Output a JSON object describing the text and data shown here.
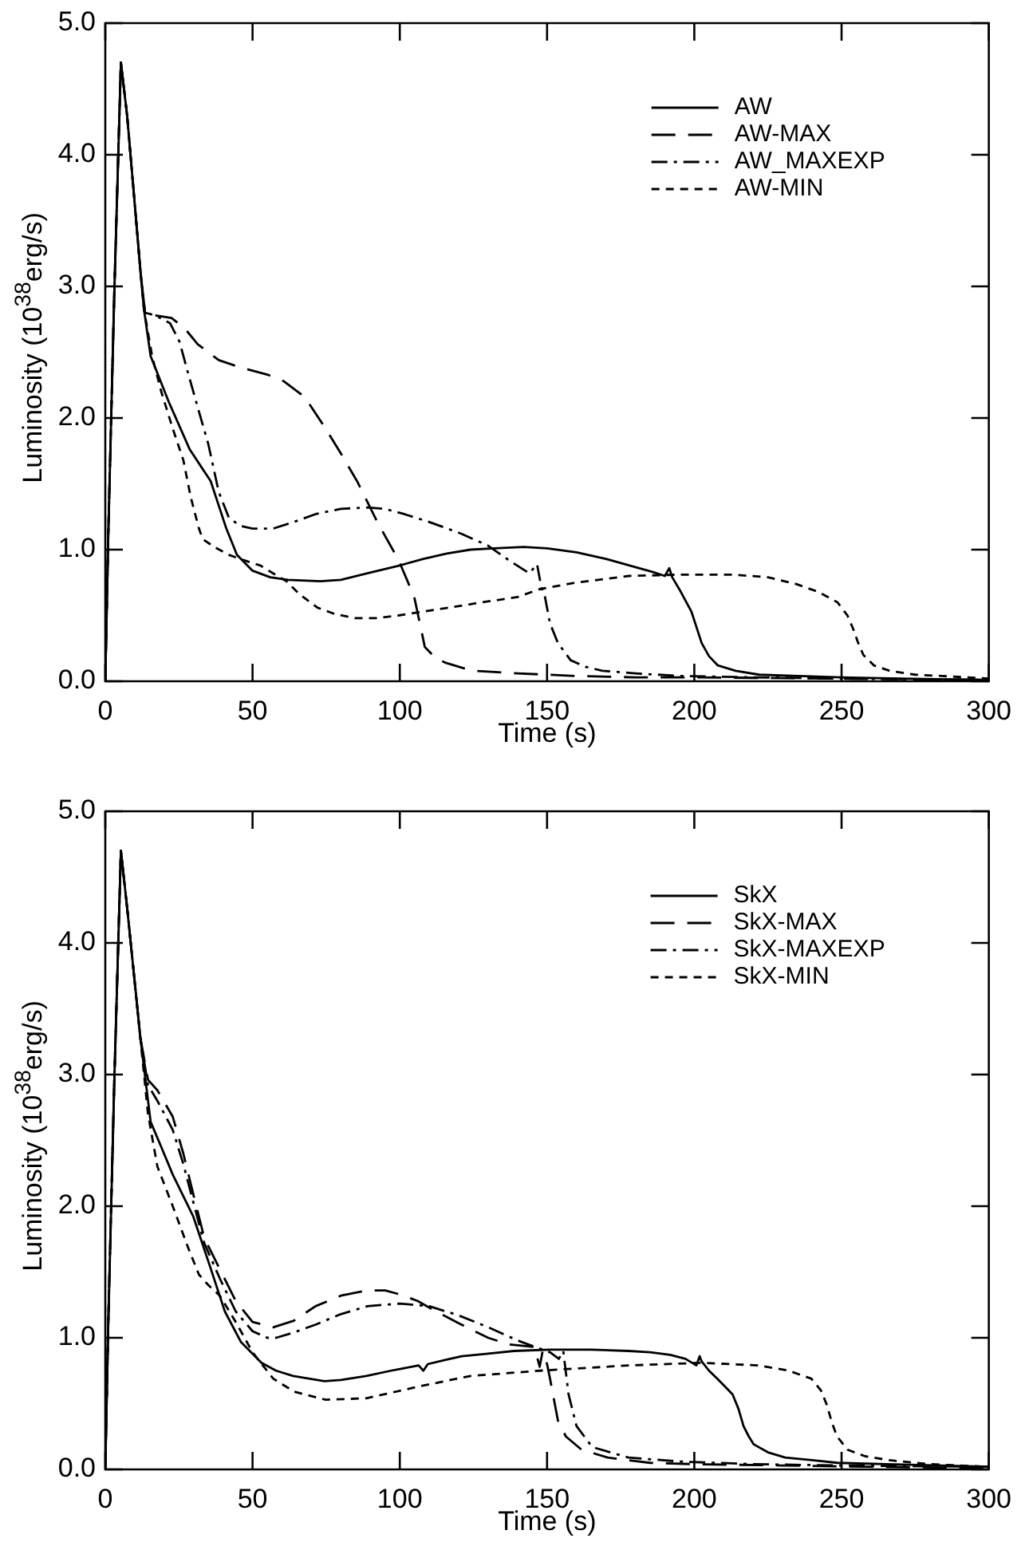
{
  "chart_data": [
    {
      "type": "line",
      "xlabel": "Time (s)",
      "ylabel": "Luminosity (10$^{38}$erg/s)",
      "xlim": [
        0,
        300
      ],
      "ylim": [
        0,
        5
      ],
      "xticks": [
        0,
        50,
        100,
        150,
        200,
        250,
        300
      ],
      "yticks": [
        {
          "value": 0,
          "label": "0.0"
        },
        {
          "value": 1,
          "label": "1.0"
        },
        {
          "value": 2,
          "label": "2.0"
        },
        {
          "value": 3,
          "label": "3.0"
        },
        {
          "value": 4,
          "label": "4.0"
        },
        {
          "value": 5,
          "label": "5.0"
        }
      ],
      "grid": false,
      "legend": "top right",
      "series": [
        {
          "name": "AW",
          "color": "#000000",
          "line_style": "solid",
          "x": [
            0,
            1,
            3,
            5.3,
            7.4,
            10.1,
            12,
            13.1,
            15.4,
            21.6,
            28.7,
            35.8,
            41.1,
            44.7,
            50,
            56,
            62,
            73,
            80,
            89,
            100,
            108,
            116,
            124,
            132,
            142,
            150,
            160,
            170,
            178,
            186,
            190,
            191.5,
            192.5,
            195.4,
            199,
            202.5,
            205,
            208,
            214,
            222,
            235,
            250,
            270,
            300
          ],
          "values": [
            0,
            1.1,
            2.9,
            4.7,
            4.3,
            3.6,
            3.1,
            2.83,
            2.47,
            2.12,
            1.76,
            1.52,
            1.16,
            0.96,
            0.84,
            0.79,
            0.77,
            0.76,
            0.77,
            0.82,
            0.88,
            0.93,
            0.97,
            1.0,
            1.01,
            1.02,
            1.01,
            0.98,
            0.93,
            0.88,
            0.83,
            0.8,
            0.86,
            0.79,
            0.68,
            0.53,
            0.29,
            0.19,
            0.12,
            0.08,
            0.05,
            0.04,
            0.03,
            0.02,
            0.01
          ]
        },
        {
          "name": "AW-MAX",
          "color": "#000000",
          "line_style": "dashed",
          "x": [
            0,
            1,
            3,
            5.3,
            7.4,
            10.1,
            12,
            13.5,
            17,
            22.5,
            27,
            31.4,
            38.5,
            45,
            50,
            55,
            60.6,
            67.7,
            74.8,
            80,
            85.5,
            92.6,
            99.6,
            104.9,
            107,
            108.5,
            112,
            115.6,
            124.5,
            140,
            160,
            180,
            200,
            250,
            300
          ],
          "values": [
            0,
            1.1,
            2.9,
            4.7,
            4.3,
            3.6,
            3.1,
            2.8,
            2.78,
            2.76,
            2.68,
            2.56,
            2.44,
            2.39,
            2.36,
            2.33,
            2.28,
            2.16,
            1.92,
            1.73,
            1.52,
            1.2,
            0.92,
            0.64,
            0.42,
            0.26,
            0.18,
            0.14,
            0.08,
            0.06,
            0.04,
            0.03,
            0.03,
            0.02,
            0.01
          ]
        },
        {
          "name": "AW_MAXEXP",
          "color": "#000000",
          "line_style": "dashdot",
          "x": [
            0,
            1,
            3,
            5.3,
            7.4,
            10.1,
            12,
            13.5,
            17,
            22,
            25.2,
            28,
            31.4,
            35,
            38.5,
            42,
            46,
            50,
            57,
            64,
            71.4,
            80,
            89,
            95,
            101.5,
            110,
            121,
            130,
            137,
            144,
            146.6,
            148,
            149.3,
            151,
            153.7,
            158,
            163,
            168.8,
            180,
            195.4,
            220,
            250,
            300
          ],
          "values": [
            0,
            1.1,
            2.9,
            4.7,
            4.3,
            3.6,
            3.1,
            2.8,
            2.78,
            2.72,
            2.58,
            2.35,
            2.08,
            1.8,
            1.44,
            1.24,
            1.18,
            1.16,
            1.16,
            1.21,
            1.27,
            1.31,
            1.32,
            1.31,
            1.27,
            1.21,
            1.12,
            1.03,
            0.92,
            0.82,
            0.89,
            0.72,
            0.64,
            0.44,
            0.29,
            0.16,
            0.11,
            0.08,
            0.06,
            0.04,
            0.03,
            0.02,
            0.01
          ]
        },
        {
          "name": "AW-MIN",
          "color": "#000000",
          "line_style": "dotted",
          "x": [
            0,
            1,
            3,
            5.3,
            7.4,
            10.1,
            12,
            13.1,
            15.9,
            19,
            22.9,
            26.5,
            29,
            31.8,
            33.1,
            37,
            42,
            47,
            52.6,
            57,
            61.5,
            66,
            72,
            78,
            84.7,
            92,
            99.6,
            108,
            117,
            128,
            140,
            147.5,
            160,
            177.7,
            195,
            213,
            225,
            234.4,
            242,
            248.6,
            252,
            253.9,
            255.5,
            257.4,
            261,
            266.3,
            275,
            284,
            300
          ],
          "values": [
            0,
            1.1,
            2.9,
            4.7,
            4.3,
            3.6,
            3.1,
            2.83,
            2.47,
            2.2,
            1.92,
            1.68,
            1.4,
            1.16,
            1.08,
            1.02,
            0.96,
            0.92,
            0.88,
            0.82,
            0.76,
            0.66,
            0.56,
            0.51,
            0.48,
            0.48,
            0.5,
            0.53,
            0.56,
            0.6,
            0.64,
            0.7,
            0.75,
            0.8,
            0.81,
            0.81,
            0.79,
            0.74,
            0.68,
            0.6,
            0.5,
            0.4,
            0.3,
            0.2,
            0.12,
            0.08,
            0.05,
            0.04,
            0.02
          ]
        }
      ]
    },
    {
      "type": "line",
      "xlabel": "Time (s)",
      "ylabel": "Luminosity (10$^{38}$erg/s)",
      "xlim": [
        0,
        300
      ],
      "ylim": [
        0,
        5
      ],
      "xticks": [
        0,
        50,
        100,
        150,
        200,
        250,
        300
      ],
      "yticks": [
        {
          "value": 0,
          "label": "0.0"
        },
        {
          "value": 1,
          "label": "1.0"
        },
        {
          "value": 2,
          "label": "2.0"
        },
        {
          "value": 3,
          "label": "3.0"
        },
        {
          "value": 4,
          "label": "4.0"
        },
        {
          "value": 5,
          "label": "5.0"
        }
      ],
      "grid": false,
      "legend": "top right",
      "series": [
        {
          "name": "SkX",
          "color": "#000000",
          "line_style": "solid",
          "x": [
            0,
            1,
            3,
            5.3,
            7.4,
            10.1,
            11.9,
            15.4,
            19,
            22.9,
            29.9,
            35.3,
            40.6,
            46,
            53,
            58,
            63.8,
            74.4,
            80,
            88.6,
            97,
            106.4,
            108,
            109.5,
            115,
            121,
            130,
            138.8,
            151,
            165,
            177.7,
            185,
            191.8,
            197,
            200.7,
            201.8,
            202.5,
            205,
            207.8,
            210,
            213,
            215,
            216.7,
            218.5,
            220.2,
            225,
            230.9,
            240,
            248.6,
            265,
            300
          ],
          "values": [
            0,
            1.1,
            2.9,
            4.7,
            4.27,
            3.68,
            3.28,
            2.64,
            2.45,
            2.24,
            1.92,
            1.56,
            1.2,
            0.97,
            0.81,
            0.75,
            0.71,
            0.67,
            0.68,
            0.71,
            0.75,
            0.79,
            0.75,
            0.8,
            0.83,
            0.86,
            0.88,
            0.9,
            0.91,
            0.91,
            0.9,
            0.89,
            0.87,
            0.84,
            0.79,
            0.86,
            0.82,
            0.75,
            0.69,
            0.64,
            0.57,
            0.46,
            0.33,
            0.25,
            0.19,
            0.13,
            0.09,
            0.07,
            0.05,
            0.04,
            0.02
          ]
        },
        {
          "name": "SkX-MAX",
          "color": "#000000",
          "line_style": "dashed",
          "x": [
            0,
            1,
            3,
            5.3,
            7.4,
            10.1,
            11.9,
            14.5,
            17.7,
            22.9,
            26.5,
            30,
            33.6,
            38.9,
            44.3,
            50,
            57,
            64,
            71.4,
            80,
            89.1,
            95,
            100,
            106,
            112.4,
            120,
            130,
            137,
            145.7,
            147.5,
            148.5,
            150,
            151,
            153.7,
            156.4,
            161.7,
            170.6,
            185,
            200,
            230,
            260,
            300
          ],
          "values": [
            0,
            1.1,
            2.9,
            4.7,
            4.27,
            3.68,
            3.28,
            2.96,
            2.88,
            2.68,
            2.4,
            2.08,
            1.76,
            1.52,
            1.28,
            1.12,
            1.08,
            1.13,
            1.24,
            1.32,
            1.36,
            1.36,
            1.33,
            1.28,
            1.2,
            1.11,
            1.0,
            0.95,
            0.93,
            0.78,
            0.9,
            0.8,
            0.69,
            0.37,
            0.25,
            0.15,
            0.09,
            0.05,
            0.04,
            0.03,
            0.02,
            0.01
          ]
        },
        {
          "name": "SkX-MAXEXP",
          "color": "#000000",
          "line_style": "dashdot",
          "x": [
            0,
            1,
            3,
            5.3,
            7.4,
            10.1,
            11.9,
            14.5,
            17.7,
            22.9,
            26.5,
            30,
            33.6,
            38.9,
            44.3,
            50,
            55,
            58,
            64,
            71.4,
            80,
            89,
            100,
            110,
            120,
            130,
            140,
            146,
            151,
            154,
            155.5,
            157.3,
            160,
            165.3,
            177.7,
            195,
            220,
            250,
            300
          ],
          "values": [
            0,
            1.1,
            2.9,
            4.7,
            4.27,
            3.68,
            3.28,
            2.92,
            2.8,
            2.58,
            2.32,
            2.02,
            1.72,
            1.45,
            1.2,
            1.05,
            1.0,
            1.0,
            1.04,
            1.1,
            1.18,
            1.24,
            1.26,
            1.24,
            1.17,
            1.08,
            0.98,
            0.93,
            0.89,
            0.84,
            0.9,
            0.57,
            0.33,
            0.17,
            0.09,
            0.06,
            0.04,
            0.03,
            0.02
          ]
        },
        {
          "name": "SkX-MIN",
          "color": "#000000",
          "line_style": "dotted",
          "x": [
            0,
            1,
            3,
            5.3,
            7.4,
            10.1,
            11.9,
            14.5,
            17.7,
            22.9,
            28.2,
            31.8,
            35,
            38.9,
            44.3,
            50,
            57,
            64.2,
            74.8,
            88.6,
            106.4,
            124,
            147.5,
            177.7,
            202.5,
            222,
            232,
            239.7,
            243,
            245,
            246.8,
            248.5,
            252,
            258,
            266.3,
            280,
            300
          ],
          "values": [
            0,
            1.1,
            2.9,
            4.7,
            4.27,
            3.68,
            3.28,
            2.7,
            2.3,
            2.0,
            1.68,
            1.48,
            1.4,
            1.32,
            1.12,
            0.89,
            0.69,
            0.59,
            0.53,
            0.54,
            0.63,
            0.71,
            0.75,
            0.79,
            0.81,
            0.79,
            0.75,
            0.69,
            0.6,
            0.49,
            0.35,
            0.25,
            0.15,
            0.1,
            0.07,
            0.04,
            0.02
          ]
        }
      ]
    }
  ]
}
